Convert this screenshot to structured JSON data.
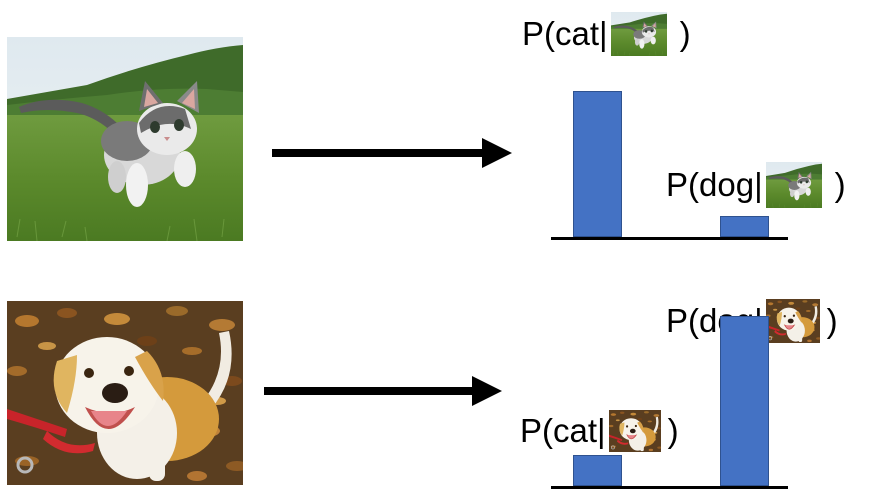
{
  "rows": [
    {
      "photo": "cat-photo",
      "labels": [
        {
          "prefix": "P(cat",
          "bar": "|",
          "suffix": ")"
        },
        {
          "prefix": "P(dog",
          "bar": "|",
          "suffix": ")"
        }
      ],
      "probabilities": {
        "cat": 0.85,
        "dog": 0.12
      }
    },
    {
      "photo": "dog-photo",
      "labels": [
        {
          "prefix": "P(cat",
          "bar": "|",
          "suffix": ")"
        },
        {
          "prefix": "P(dog",
          "bar": "|",
          "suffix": ")"
        }
      ],
      "probabilities": {
        "cat": 0.18,
        "dog": 0.99
      }
    }
  ],
  "colors": {
    "bar": "#4472c4",
    "arrow": "#000000"
  }
}
